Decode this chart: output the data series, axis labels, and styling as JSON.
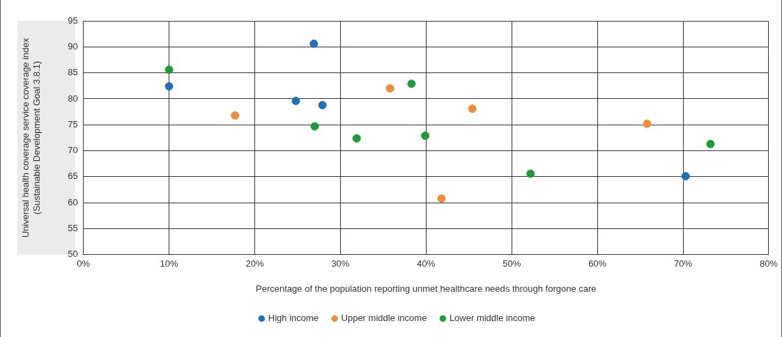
{
  "chart_data": {
    "type": "scatter",
    "xlabel": "Percentage of the population reporting unmet healthcare needs through forgone care",
    "ylabel": "Universal health coverage service coverage index\n(Sustainable Development Goal 3.8.1)",
    "xlim": [
      0,
      80
    ],
    "xticks": [
      {
        "value": 0,
        "label": "0%"
      },
      {
        "value": 10,
        "label": "10%"
      },
      {
        "value": 20,
        "label": "20%"
      },
      {
        "value": 30,
        "label": "30%"
      },
      {
        "value": 40,
        "label": "40%"
      },
      {
        "value": 50,
        "label": "50%"
      },
      {
        "value": 60,
        "label": "60%"
      },
      {
        "value": 70,
        "label": "70%"
      },
      {
        "value": 80,
        "label": "80%"
      }
    ],
    "ylim": [
      50,
      95
    ],
    "yticks": [
      50,
      55,
      60,
      65,
      70,
      75,
      80,
      85,
      90,
      95
    ],
    "grid": true,
    "legend": "bottom",
    "marker": "circle",
    "series": [
      {
        "name": "High income",
        "color": "#1f6fb5",
        "x": [
          10,
          26.9,
          24.8,
          27.9,
          70.3
        ],
        "values": [
          82.4,
          90.6,
          79.6,
          78.8,
          65.1
        ]
      },
      {
        "name": "Upper middle income",
        "color": "#f28c38",
        "x": [
          17.7,
          35.8,
          45.4,
          41.8,
          65.8
        ],
        "values": [
          76.8,
          82,
          78.1,
          60.8,
          75.2
        ]
      },
      {
        "name": "Lower middle income",
        "color": "#1e9a3a",
        "x": [
          10,
          27,
          31.9,
          38.3,
          39.9,
          52.2,
          73.2
        ],
        "values": [
          85.6,
          74.7,
          72.4,
          82.9,
          72.9,
          65.6,
          71.3
        ]
      }
    ]
  }
}
